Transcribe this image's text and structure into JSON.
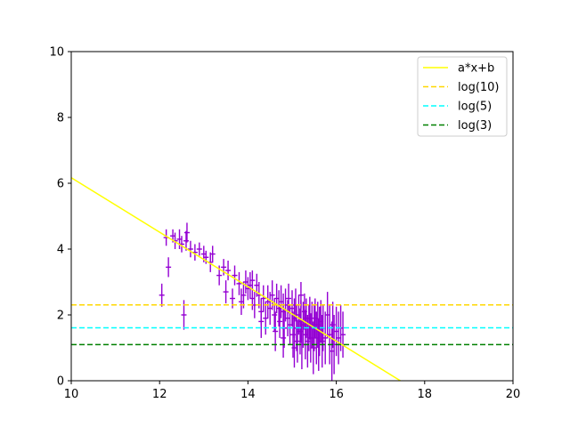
{
  "chart_data": {
    "type": "scatter",
    "xlim": [
      10,
      20
    ],
    "ylim": [
      0,
      10
    ],
    "x_ticks": [
      "10",
      "12",
      "14",
      "16",
      "18",
      "20"
    ],
    "y_ticks": [
      "0",
      "2",
      "4",
      "6",
      "8",
      "10"
    ],
    "grid": false,
    "legend_position": "top-right",
    "legend": [
      "a*x+b",
      "log(10)",
      "log(5)",
      "log(3)"
    ],
    "lines": [
      {
        "name": "a*x+b",
        "color": "#ffff00",
        "dash": "solid",
        "x": [
          10,
          17.45
        ],
        "y": [
          6.17,
          0
        ]
      },
      {
        "name": "log(10)",
        "color": "#ffd700",
        "dash": "dashed",
        "x": [
          10,
          20
        ],
        "y": [
          2.3026,
          2.3026
        ]
      },
      {
        "name": "log(5)",
        "color": "#00ffff",
        "dash": "dashed",
        "x": [
          10,
          20
        ],
        "y": [
          1.6094,
          1.6094
        ]
      },
      {
        "name": "log(3)",
        "color": "#008000",
        "dash": "dashed",
        "x": [
          10,
          20
        ],
        "y": [
          1.0986,
          1.0986
        ]
      }
    ],
    "points_color": "#9400d3",
    "points": [
      [
        12.05,
        2.6,
        0.35
      ],
      [
        12.15,
        4.35,
        0.25
      ],
      [
        12.2,
        3.45,
        0.3
      ],
      [
        12.3,
        4.4,
        0.2
      ],
      [
        12.35,
        4.25,
        0.25
      ],
      [
        12.45,
        4.3,
        0.3
      ],
      [
        12.5,
        4.15,
        0.25
      ],
      [
        12.55,
        2.0,
        0.45
      ],
      [
        12.6,
        4.25,
        0.3
      ],
      [
        12.62,
        4.5,
        0.3
      ],
      [
        12.7,
        4.0,
        0.25
      ],
      [
        12.8,
        3.9,
        0.25
      ],
      [
        12.9,
        4.0,
        0.2
      ],
      [
        13.0,
        3.85,
        0.25
      ],
      [
        13.05,
        3.75,
        0.2
      ],
      [
        13.15,
        3.6,
        0.3
      ],
      [
        13.2,
        3.85,
        0.25
      ],
      [
        13.35,
        3.2,
        0.3
      ],
      [
        13.45,
        3.45,
        0.25
      ],
      [
        13.55,
        3.35,
        0.3
      ],
      [
        13.65,
        2.5,
        0.3
      ],
      [
        13.7,
        3.2,
        0.3
      ],
      [
        13.8,
        2.95,
        0.35
      ],
      [
        13.85,
        2.4,
        0.4
      ],
      [
        13.9,
        2.6,
        0.4
      ],
      [
        13.95,
        3.0,
        0.35
      ],
      [
        14.0,
        2.8,
        0.35
      ],
      [
        14.05,
        2.9,
        0.4
      ],
      [
        14.1,
        2.5,
        0.35
      ],
      [
        14.15,
        2.3,
        0.4
      ],
      [
        14.2,
        2.9,
        0.35
      ],
      [
        14.25,
        2.6,
        0.4
      ],
      [
        14.3,
        2.1,
        0.4
      ],
      [
        14.35,
        2.5,
        0.4
      ],
      [
        14.4,
        1.9,
        0.5
      ],
      [
        14.45,
        2.4,
        0.5
      ],
      [
        14.5,
        2.2,
        0.5
      ],
      [
        14.55,
        2.6,
        0.45
      ],
      [
        14.6,
        2.0,
        0.5
      ],
      [
        14.62,
        1.5,
        0.6
      ],
      [
        14.65,
        2.5,
        0.45
      ],
      [
        14.7,
        2.2,
        0.55
      ],
      [
        14.72,
        1.8,
        0.5
      ],
      [
        14.75,
        2.4,
        0.5
      ],
      [
        14.8,
        2.1,
        0.55
      ],
      [
        14.82,
        1.6,
        0.6
      ],
      [
        14.85,
        2.3,
        0.5
      ],
      [
        14.9,
        1.9,
        0.55
      ],
      [
        14.92,
        2.5,
        0.45
      ],
      [
        14.95,
        1.7,
        0.6
      ],
      [
        15.0,
        2.2,
        0.55
      ],
      [
        15.02,
        1.4,
        0.7
      ],
      [
        15.05,
        1.9,
        0.6
      ],
      [
        15.08,
        2.3,
        0.5
      ],
      [
        15.1,
        1.6,
        0.7
      ],
      [
        15.12,
        1.2,
        0.65
      ],
      [
        15.15,
        2.0,
        0.6
      ],
      [
        15.18,
        1.5,
        0.7
      ],
      [
        15.2,
        1.8,
        0.65
      ],
      [
        15.22,
        1.1,
        0.75
      ],
      [
        15.25,
        1.7,
        0.7
      ],
      [
        15.28,
        2.1,
        0.55
      ],
      [
        15.3,
        1.4,
        0.75
      ],
      [
        15.32,
        1.9,
        0.6
      ],
      [
        15.35,
        1.2,
        0.8
      ],
      [
        15.38,
        1.6,
        0.7
      ],
      [
        15.4,
        1.9,
        0.65
      ],
      [
        15.42,
        1.3,
        0.75
      ],
      [
        15.45,
        1.7,
        0.7
      ],
      [
        15.48,
        1.0,
        0.8
      ],
      [
        15.5,
        1.6,
        0.7
      ],
      [
        15.52,
        1.9,
        0.6
      ],
      [
        15.55,
        1.3,
        0.8
      ],
      [
        15.58,
        1.7,
        0.7
      ],
      [
        15.6,
        1.1,
        0.8
      ],
      [
        15.62,
        1.5,
        0.75
      ],
      [
        15.65,
        1.8,
        0.65
      ],
      [
        15.68,
        1.2,
        0.8
      ],
      [
        15.7,
        1.6,
        0.7
      ],
      [
        15.75,
        1.3,
        0.8
      ],
      [
        15.8,
        2.0,
        0.7
      ],
      [
        15.85,
        1.4,
        0.9
      ],
      [
        15.9,
        0.9,
        0.9
      ],
      [
        15.92,
        1.7,
        0.7
      ],
      [
        15.95,
        1.1,
        0.9
      ],
      [
        16.0,
        1.5,
        0.75
      ],
      [
        16.05,
        1.3,
        0.8
      ],
      [
        16.1,
        1.6,
        0.7
      ],
      [
        16.15,
        1.4,
        0.7
      ],
      [
        14.3,
        1.8,
        0.5
      ],
      [
        14.8,
        1.3,
        0.6
      ],
      [
        15.2,
        2.6,
        0.4
      ],
      [
        14.1,
        3.05,
        0.3
      ],
      [
        13.5,
        2.7,
        0.35
      ],
      [
        15.05,
        1.0,
        0.6
      ]
    ]
  }
}
